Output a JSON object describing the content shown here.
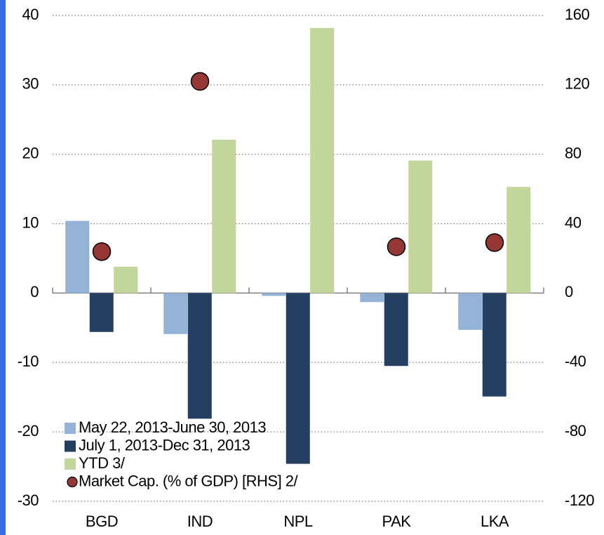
{
  "chart_data": {
    "type": "bar",
    "categories": [
      "BGD",
      "IND",
      "NPL",
      "PAK",
      "LKA"
    ],
    "series": [
      {
        "name": "May 22, 2013-June 30, 2013",
        "color": "#95b3d7",
        "values": [
          10.4,
          -5.9,
          -0.4,
          -1.3,
          -5.3
        ]
      },
      {
        "name": "July 1, 2013-Dec 31, 2013",
        "color": "#243f62",
        "values": [
          -5.6,
          -18.1,
          -24.6,
          -10.5,
          -14.9
        ]
      },
      {
        "name": "YTD 3/",
        "color": "#c3d69b",
        "values": [
          3.8,
          22.1,
          38.2,
          19.1,
          15.3
        ]
      },
      {
        "name": "Market Cap. (% of GDP) [RHS] 2/",
        "color": "#953735",
        "type": "scatter",
        "axis": "y2",
        "values": [
          23.9,
          122,
          null,
          26.7,
          29.1
        ]
      }
    ],
    "ylim": [
      -30,
      40
    ],
    "yticks": [
      -30,
      -20,
      -10,
      0,
      10,
      20,
      30,
      40
    ],
    "y2lim": [
      -120,
      160
    ],
    "y2ticks": [
      -120,
      -80,
      -40,
      0,
      40,
      80,
      120,
      160
    ],
    "grid": true,
    "legend": "lower left"
  }
}
